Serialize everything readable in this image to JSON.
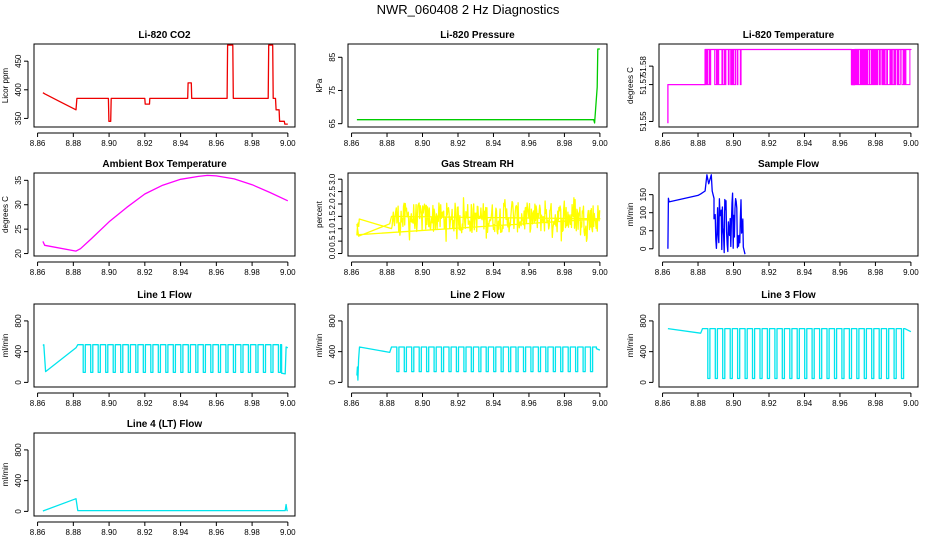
{
  "figure": {
    "title": "NWR_060408  2 Hz Diagnostics"
  },
  "colors": {
    "red": "#ee0000",
    "green": "#00cc00",
    "magenta": "#ff00ff",
    "yellow": "#ffff00",
    "blue": "#0000ff",
    "cyan": "#00e5ee"
  },
  "chart_data": [
    {
      "type": "line",
      "title": "Li-820 CO2",
      "ylabel": "Licor ppm",
      "color_key": "red",
      "xlim": [
        8.858,
        9.004
      ],
      "ylim": [
        335,
        480
      ],
      "x_ticks": [
        8.86,
        8.88,
        8.9,
        8.92,
        8.94,
        8.96,
        8.98,
        9.0
      ],
      "x_tick_labels": [
        "8.86",
        "8.88",
        "8.90",
        "8.92",
        "8.94",
        "8.96",
        "8.98",
        "9.00"
      ],
      "y_ticks": [
        350,
        400,
        450
      ],
      "y_tick_labels": [
        "350",
        "400",
        "450"
      ],
      "series": [
        {
          "name": "CO2",
          "x": [
            8.863,
            8.864,
            8.872,
            8.8815,
            8.882,
            8.8996,
            8.8999,
            8.9009,
            8.9012,
            8.92,
            8.9202,
            8.9226,
            8.9228,
            8.944,
            8.9442,
            8.946,
            8.9462,
            8.966,
            8.9663,
            8.9692,
            8.9695,
            8.989,
            8.9893,
            8.9915,
            8.9918,
            8.9931,
            8.9934,
            8.9951,
            8.9954,
            8.998,
            8.9983,
            9.0
          ],
          "y": [
            395,
            393,
            380,
            365,
            385,
            385,
            345,
            345,
            385,
            385,
            375,
            375,
            385,
            385,
            412,
            412,
            385,
            385,
            478,
            478,
            385,
            385,
            478,
            478,
            385,
            385,
            365,
            365,
            345,
            345,
            340,
            340
          ]
        }
      ]
    },
    {
      "type": "line",
      "title": "Li-820 Pressure",
      "ylabel": "kPa",
      "color_key": "green",
      "xlim": [
        8.858,
        9.004
      ],
      "ylim": [
        64,
        89
      ],
      "x_ticks": [
        8.86,
        8.88,
        8.9,
        8.92,
        8.94,
        8.96,
        8.98,
        9.0
      ],
      "x_tick_labels": [
        "8.86",
        "8.88",
        "8.90",
        "8.92",
        "8.94",
        "8.96",
        "8.98",
        "9.00"
      ],
      "y_ticks": [
        65,
        75,
        85
      ],
      "y_tick_labels": [
        "65",
        "75",
        "85"
      ],
      "series": [
        {
          "name": "Pressure",
          "x": [
            8.863,
            8.9965,
            8.997,
            8.9985,
            8.9988,
            9.0
          ],
          "y": [
            66.2,
            66.2,
            65.2,
            76,
            87.5,
            87.5
          ]
        }
      ]
    },
    {
      "type": "line",
      "title": "Li-820 Temperature",
      "ylabel": "degrees C",
      "color_key": "magenta",
      "xlim": [
        8.858,
        9.004
      ],
      "ylim": [
        51.547,
        51.592
      ],
      "x_ticks": [
        8.86,
        8.88,
        8.9,
        8.92,
        8.94,
        8.96,
        8.98,
        9.0
      ],
      "x_tick_labels": [
        "8.86",
        "8.88",
        "8.90",
        "8.92",
        "8.94",
        "8.96",
        "8.98",
        "9.00"
      ],
      "y_ticks": [
        51.55,
        51.57,
        51.58
      ],
      "y_tick_labels": [
        "51.55",
        "51.57",
        "51.58"
      ],
      "series": [
        {
          "name": "Temperature",
          "x": [
            8.863,
            8.863,
            8.8635,
            8.8635,
            8.884,
            8.884,
            8.905,
            8.905,
            8.9665,
            8.9665,
            8.9683,
            8.9683,
            9.0
          ],
          "y": [
            51.549,
            51.57,
            51.57,
            51.57,
            51.57,
            51.589,
            51.589,
            51.589,
            51.589,
            51.57,
            51.57,
            51.589,
            51.589
          ]
        }
      ],
      "dense_bands": [
        [
          8.884,
          8.9055
        ],
        [
          8.9665,
          9.0
        ]
      ],
      "band_values": [
        51.57,
        51.589
      ]
    },
    {
      "type": "line",
      "title": "Ambient Box Temperature",
      "ylabel": "degrees C",
      "color_key": "magenta",
      "xlim": [
        8.858,
        9.004
      ],
      "ylim": [
        19.5,
        36.5
      ],
      "x_ticks": [
        8.86,
        8.88,
        8.9,
        8.92,
        8.94,
        8.96,
        8.98,
        9.0
      ],
      "x_tick_labels": [
        "8.86",
        "8.88",
        "8.90",
        "8.92",
        "8.94",
        "8.96",
        "8.98",
        "9.00"
      ],
      "y_ticks": [
        20,
        25,
        30,
        35
      ],
      "y_tick_labels": [
        "20",
        "25",
        "30",
        "35"
      ],
      "series": [
        {
          "name": "Ambient",
          "x": [
            8.863,
            8.864,
            8.8815,
            8.884,
            8.89,
            8.9,
            8.91,
            8.92,
            8.93,
            8.94,
            8.95,
            8.955,
            8.96,
            8.97,
            8.98,
            8.99,
            9.0
          ],
          "y": [
            22.5,
            21.7,
            20.5,
            21.0,
            23.0,
            26.5,
            29.5,
            32.2,
            34.0,
            35.2,
            35.8,
            36.0,
            35.9,
            35.3,
            34.1,
            32.5,
            30.8
          ]
        }
      ]
    },
    {
      "type": "line",
      "title": "Gas Stream RH",
      "ylabel": "percent",
      "color_key": "yellow",
      "xlim": [
        8.858,
        9.004
      ],
      "ylim": [
        -0.1,
        3.25
      ],
      "x_ticks": [
        8.86,
        8.88,
        8.9,
        8.92,
        8.94,
        8.96,
        8.98,
        9.0
      ],
      "x_tick_labels": [
        "8.86",
        "8.88",
        "8.90",
        "8.92",
        "8.94",
        "8.96",
        "8.98",
        "9.00"
      ],
      "y_ticks": [
        0.0,
        0.5,
        1.0,
        1.5,
        2.0,
        2.5,
        3.0
      ],
      "y_tick_labels": [
        "0.0",
        "0.5",
        "1.0",
        "1.5",
        "2.0",
        "2.5",
        "3.0"
      ],
      "series": [
        {
          "name": "RH",
          "x": [
            8.863,
            8.864,
            8.8815,
            8.8825,
            9.0
          ],
          "y": [
            1.2,
            0.7,
            1.2,
            1.5,
            1.4
          ]
        }
      ],
      "noise": [
        {
          "x_range": [
            8.863,
            8.8645
          ],
          "center": 1.1,
          "spread": 0.7
        },
        {
          "x_range": [
            8.8825,
            9.0
          ],
          "center": 1.45,
          "spread": 1.2
        }
      ]
    },
    {
      "type": "line",
      "title": "Sample Flow",
      "ylabel": "ml/min",
      "color_key": "blue",
      "xlim": [
        8.858,
        9.004
      ],
      "ylim": [
        -20,
        210
      ],
      "x_ticks": [
        8.86,
        8.88,
        8.9,
        8.92,
        8.94,
        8.96,
        8.98,
        9.0
      ],
      "x_tick_labels": [
        "8.86",
        "8.88",
        "8.90",
        "8.92",
        "8.94",
        "8.96",
        "8.98",
        "9.00"
      ],
      "y_ticks": [
        0,
        50,
        100,
        150
      ],
      "y_tick_labels": [
        "0",
        "50",
        "100",
        "150"
      ],
      "series": [
        {
          "name": "Sample",
          "x": [
            8.863,
            8.8633,
            8.8637,
            8.88,
            8.8815,
            8.884,
            8.885,
            8.886,
            8.8875,
            8.888,
            8.8885,
            8.889,
            8.889
          ],
          "y": [
            0,
            140,
            130,
            148,
            152,
            160,
            205,
            180,
            205,
            160,
            150,
            140,
            120
          ]
        }
      ],
      "noise": [
        {
          "x_range": [
            8.889,
            8.9055
          ],
          "center": 70,
          "spread": 150
        }
      ],
      "tail": {
        "x": [
          8.9055,
          8.9065
        ],
        "y": [
          5,
          -15
        ]
      }
    },
    {
      "type": "line",
      "title": "Line 1 Flow",
      "ylabel": "ml/min",
      "color_key": "cyan",
      "xlim": [
        8.858,
        9.004
      ],
      "ylim": [
        -60,
        1020
      ],
      "x_ticks": [
        8.86,
        8.88,
        8.9,
        8.92,
        8.94,
        8.96,
        8.98,
        9.0
      ],
      "x_tick_labels": [
        "8.86",
        "8.88",
        "8.90",
        "8.92",
        "8.94",
        "8.96",
        "8.98",
        "9.00"
      ],
      "y_ticks": [
        0,
        400,
        800
      ],
      "y_tick_labels": [
        "0",
        "400",
        "800"
      ],
      "series": [
        {
          "name": "Line 1",
          "x": [
            8.863,
            8.8635,
            8.8645,
            8.8815
          ],
          "y": [
            480,
            490,
            140,
            450
          ]
        }
      ],
      "square_wave": {
        "start": 8.8825,
        "end": 8.9965,
        "period": 0.0042,
        "duty": 0.72,
        "high": 490,
        "low": 130
      },
      "tail": {
        "x": [
          8.9965,
          8.9985,
          8.999,
          9.0
        ],
        "y": [
          120,
          110,
          460,
          450
        ]
      }
    },
    {
      "type": "line",
      "title": "Line 2 Flow",
      "ylabel": "ml/min",
      "color_key": "cyan",
      "xlim": [
        8.858,
        9.004
      ],
      "ylim": [
        -60,
        1020
      ],
      "x_ticks": [
        8.86,
        8.88,
        8.9,
        8.92,
        8.94,
        8.96,
        8.98,
        9.0
      ],
      "x_tick_labels": [
        "8.86",
        "8.88",
        "8.90",
        "8.92",
        "8.94",
        "8.96",
        "8.98",
        "9.00"
      ],
      "y_ticks": [
        0,
        400,
        800
      ],
      "y_tick_labels": [
        "0",
        "400",
        "800"
      ],
      "series": [
        {
          "name": "Line 2",
          "x": [
            8.863,
            8.8633,
            8.8636,
            8.864,
            8.8645,
            8.8815
          ],
          "y": [
            90,
            200,
            30,
            300,
            460,
            390
          ]
        }
      ],
      "square_wave": {
        "start": 8.8825,
        "end": 8.998,
        "period": 0.0042,
        "duty": 0.72,
        "high": 460,
        "low": 140
      },
      "tail": {
        "x": [
          8.998,
          9.0
        ],
        "y": [
          440,
          420
        ]
      }
    },
    {
      "type": "line",
      "title": "Line 3 Flow",
      "ylabel": "ml/min",
      "color_key": "cyan",
      "xlim": [
        8.858,
        9.004
      ],
      "ylim": [
        -60,
        1020
      ],
      "x_ticks": [
        8.86,
        8.88,
        8.9,
        8.92,
        8.94,
        8.96,
        8.98,
        9.0
      ],
      "x_tick_labels": [
        "8.86",
        "8.88",
        "8.90",
        "8.92",
        "8.94",
        "8.96",
        "8.98",
        "9.00"
      ],
      "y_ticks": [
        0,
        400,
        800
      ],
      "y_tick_labels": [
        "0",
        "400",
        "800"
      ],
      "series": [
        {
          "name": "Line 3",
          "x": [
            8.863,
            8.8815
          ],
          "y": [
            700,
            640
          ]
        }
      ],
      "square_wave": {
        "start": 8.8825,
        "end": 8.9965,
        "period": 0.0042,
        "duty": 0.72,
        "high": 700,
        "low": 50
      },
      "tail": {
        "x": [
          8.9965,
          9.0
        ],
        "y": [
          700,
          660
        ]
      }
    },
    {
      "type": "line",
      "title": "Line 4 (LT) Flow",
      "ylabel": "ml/min",
      "color_key": "cyan",
      "xlim": [
        8.858,
        9.004
      ],
      "ylim": [
        -60,
        1020
      ],
      "x_ticks": [
        8.86,
        8.88,
        8.9,
        8.92,
        8.94,
        8.96,
        8.98,
        9.0
      ],
      "x_tick_labels": [
        "8.86",
        "8.88",
        "8.90",
        "8.92",
        "8.94",
        "8.96",
        "8.98",
        "9.00"
      ],
      "y_ticks": [
        0,
        400,
        800
      ],
      "y_tick_labels": [
        "0",
        "400",
        "800"
      ],
      "series": [
        {
          "name": "Line 4",
          "x": [
            8.863,
            8.8815,
            8.8825,
            8.9985,
            8.999,
            8.9995,
            9.0
          ],
          "y": [
            5,
            165,
            10,
            10,
            90,
            10,
            10
          ]
        }
      ]
    }
  ]
}
